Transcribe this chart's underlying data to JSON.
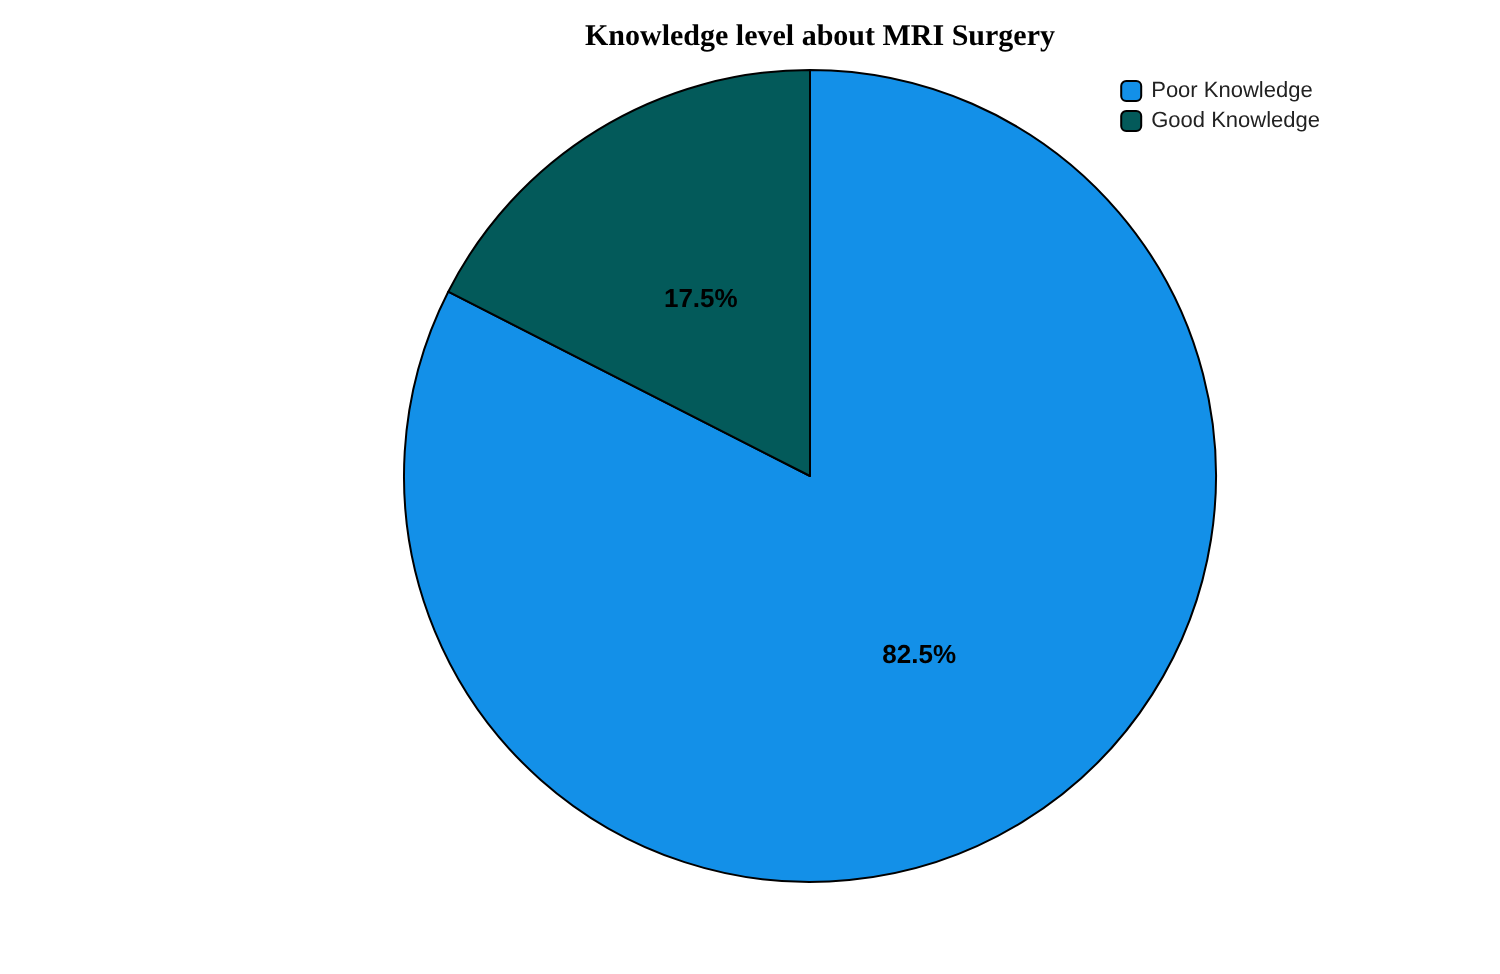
{
  "chart_data": {
    "type": "pie",
    "title": "Knowledge level about MRI Surgery",
    "categories": [
      "Poor Knowledge",
      "Good Knowledge"
    ],
    "values": [
      82.5,
      17.5
    ],
    "colors": [
      "#1390e8",
      "#035a5a"
    ],
    "value_labels": [
      "82.5%",
      "17.5%"
    ],
    "legend": "top right"
  }
}
